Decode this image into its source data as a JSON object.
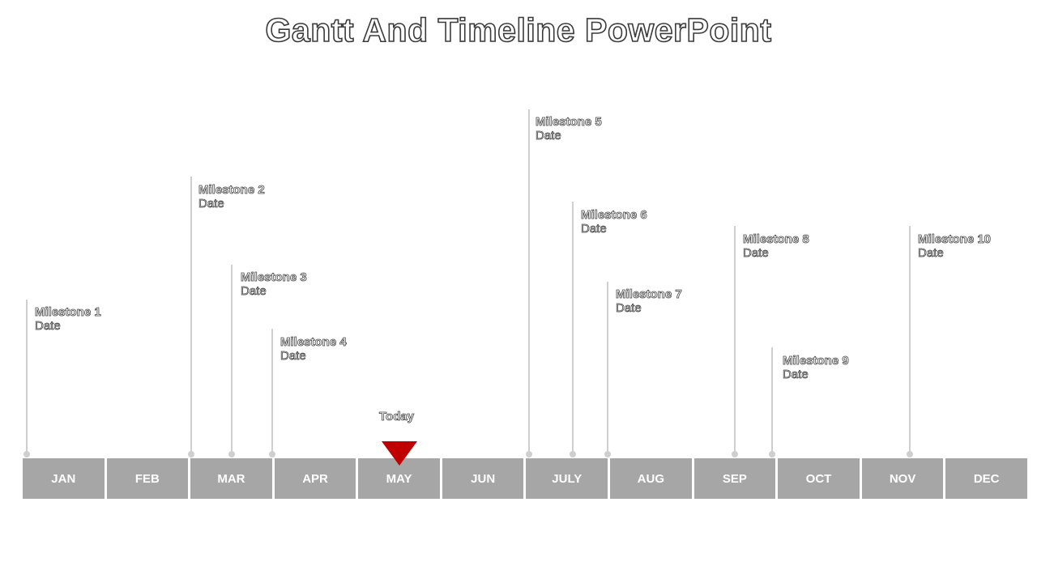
{
  "title": "Gantt And Timeline PowerPoint",
  "today_label": "Today",
  "colors": {
    "month_fill": "#a6a6a6",
    "connector": "#cfcfcf",
    "today_marker": "#c00000"
  },
  "months": [
    "JAN",
    "FEB",
    "MAR",
    "APR",
    "MAY",
    "JUN",
    "JULY",
    "AUG",
    "SEP",
    "OCT",
    "NOV",
    "DEC"
  ],
  "milestones": [
    {
      "name": "Milestone 1",
      "date": "Date"
    },
    {
      "name": "Milestone 2",
      "date": "Date"
    },
    {
      "name": "Milestone 3",
      "date": "Date"
    },
    {
      "name": "Milestone 4",
      "date": "Date"
    },
    {
      "name": "Milestone 5",
      "date": "Date"
    },
    {
      "name": "Milestone 6",
      "date": "Date"
    },
    {
      "name": "Milestone 7",
      "date": "Date"
    },
    {
      "name": "Milestone 8",
      "date": "Date"
    },
    {
      "name": "Milestone 9",
      "date": "Date"
    },
    {
      "name": "Milestone 10",
      "date": "Date"
    }
  ]
}
